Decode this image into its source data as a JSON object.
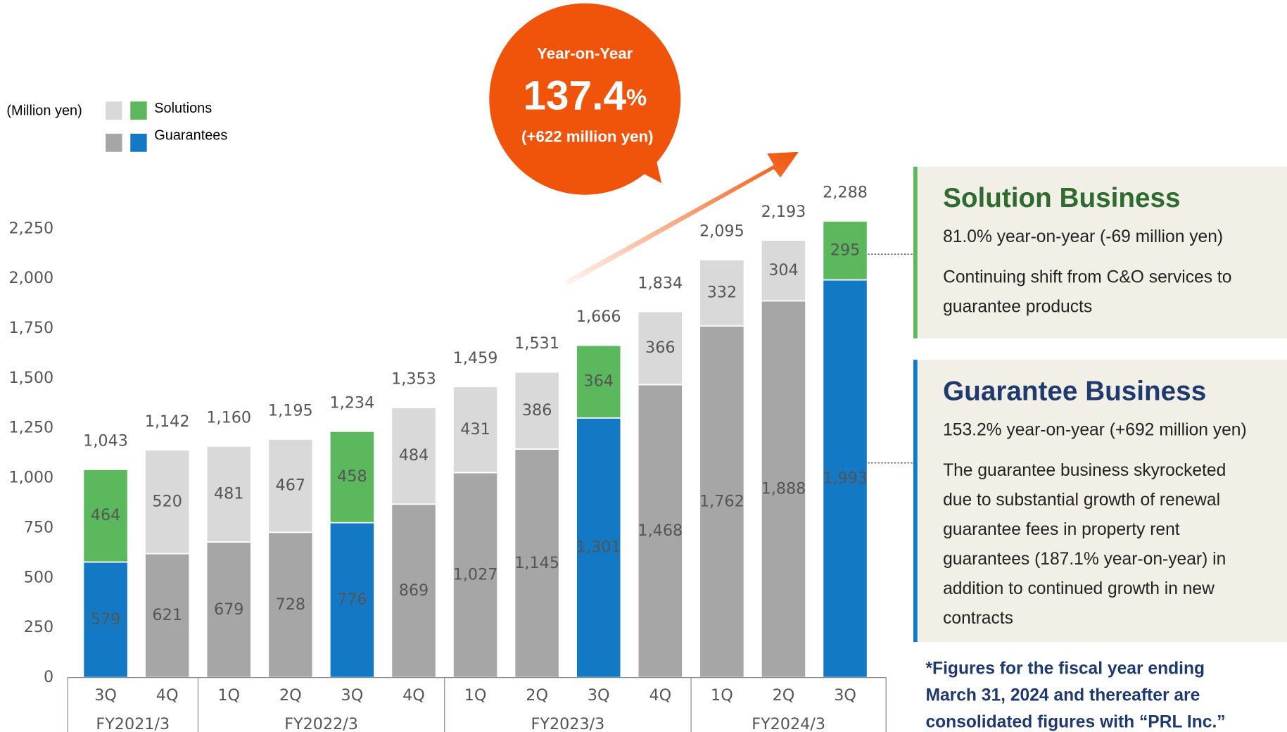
{
  "chart_data": {
    "type": "stacked-bar",
    "unit_label": "(Million yen)",
    "categories": [
      "3Q",
      "4Q",
      "1Q",
      "2Q",
      "3Q",
      "4Q",
      "1Q",
      "2Q",
      "3Q",
      "4Q",
      "1Q",
      "2Q",
      "3Q"
    ],
    "groups": [
      {
        "label": "FY2021/3",
        "count": 2
      },
      {
        "label": "FY2022/3",
        "count": 4
      },
      {
        "label": "FY2023/3",
        "count": 4
      },
      {
        "label": "FY2024/3",
        "count": 3
      }
    ],
    "highlight_categories": [
      0,
      4,
      8,
      12
    ],
    "series": [
      {
        "name": "Guarantees",
        "color": "#a6a6a6",
        "highlight_color": "#1479c4",
        "values": [
          579,
          621,
          679,
          728,
          776,
          869,
          1027,
          1145,
          1301,
          1468,
          1762,
          1888,
          1993
        ],
        "value_labels": [
          "579",
          "621",
          "679",
          "728",
          "776",
          "869",
          "1,027",
          "1,145",
          "1,301",
          "1,468",
          "1,762",
          "1,888",
          "1,993"
        ]
      },
      {
        "name": "Solutions",
        "color": "#d9d9d9",
        "highlight_color": "#5cb85c",
        "values": [
          464,
          520,
          481,
          467,
          458,
          484,
          431,
          386,
          364,
          366,
          332,
          304,
          295
        ],
        "value_labels": [
          "464",
          "520",
          "481",
          "467",
          "458",
          "484",
          "431",
          "386",
          "364",
          "366",
          "332",
          "304",
          "295"
        ]
      }
    ],
    "totals": [
      "1,043",
      "1,142",
      "1,160",
      "1,195",
      "1,234",
      "1,353",
      "1,459",
      "1,531",
      "1,666",
      "1,834",
      "2,095",
      "2,193",
      "2,288"
    ],
    "ylim": [
      0,
      2250
    ],
    "yticks": [
      0,
      {
        "value": 250,
        "label": "250"
      },
      {
        "value": 500,
        "label": "500"
      },
      {
        "value": 750,
        "label": "750"
      },
      {
        "value": 1000,
        "label": "1,000"
      },
      {
        "value": 1250,
        "label": "1,250"
      },
      {
        "value": 1500,
        "label": "1,500"
      },
      {
        "value": 1750,
        "label": "1,750"
      },
      {
        "value": 2000,
        "label": "2,000"
      },
      {
        "value": 2250,
        "label": "2,250"
      }
    ],
    "grid": false
  },
  "callout": {
    "title": "Year-on-Year",
    "value": "137.4",
    "unit": "%",
    "detail": "(+622 million yen)"
  },
  "panels": [
    {
      "title": "Solution Business",
      "summary": "81.0% year-on-year (-69 million yen)",
      "lines": [
        "Continuing shift from C&O services to",
        "guarantee products"
      ]
    },
    {
      "title": "Guarantee Business",
      "summary": "153.2% year-on-year (+692 million yen)",
      "lines": [
        "The guarantee business skyrocketed",
        "due to substantial growth of renewal",
        "guarantee fees in property rent",
        "guarantees (187.1% year-on-year) in",
        "addition to continued growth in new",
        "contracts"
      ]
    }
  ],
  "footnote": [
    "*Figures for the fiscal year ending",
    "March 31, 2024 and thereafter are",
    "consolidated figures with “PRL Inc.”"
  ]
}
